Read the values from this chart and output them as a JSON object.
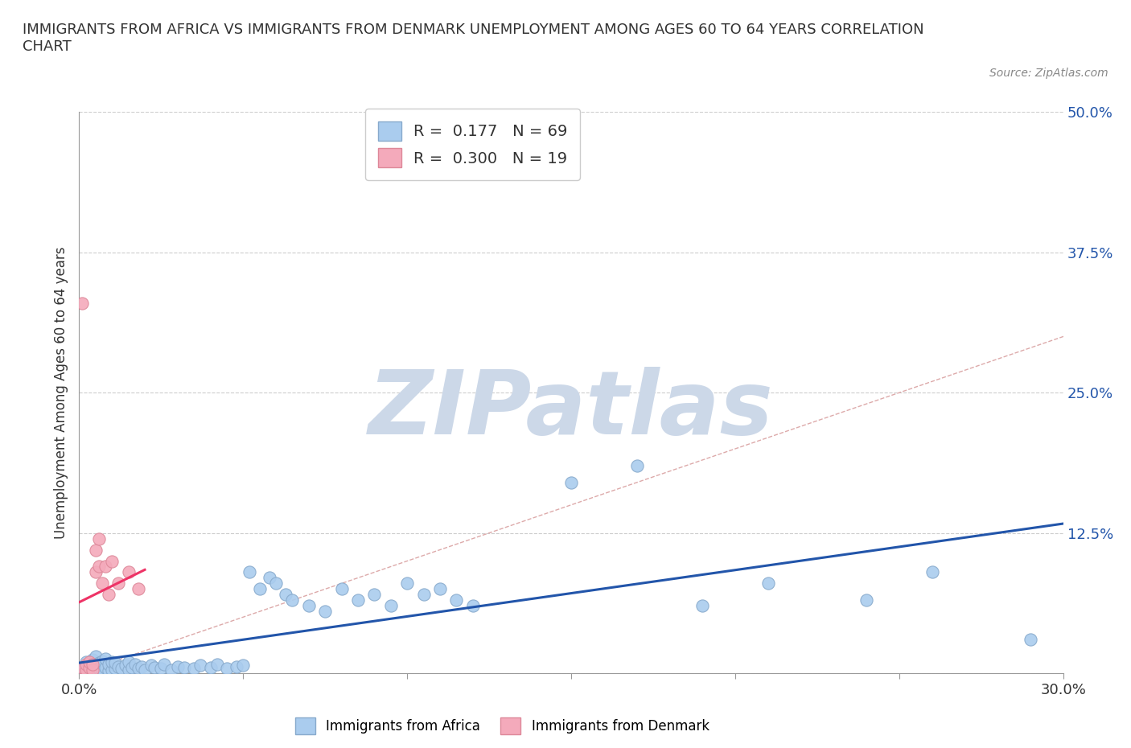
{
  "title": "IMMIGRANTS FROM AFRICA VS IMMIGRANTS FROM DENMARK UNEMPLOYMENT AMONG AGES 60 TO 64 YEARS CORRELATION\nCHART",
  "source_text": "Source: ZipAtlas.com",
  "ylabel": "Unemployment Among Ages 60 to 64 years",
  "xlim": [
    0.0,
    0.3
  ],
  "ylim": [
    0.0,
    0.5
  ],
  "xticks": [
    0.0,
    0.05,
    0.1,
    0.15,
    0.2,
    0.25,
    0.3
  ],
  "xticklabels": [
    "0.0%",
    "",
    "",
    "",
    "",
    "",
    "30.0%"
  ],
  "yticks": [
    0.0,
    0.125,
    0.25,
    0.375,
    0.5
  ],
  "yticklabels": [
    "",
    "12.5%",
    "25.0%",
    "37.5%",
    "50.0%"
  ],
  "africa_color": "#aaccee",
  "africa_edge_color": "#88aacc",
  "denmark_color": "#f4aabb",
  "denmark_edge_color": "#dd8899",
  "africa_line_color": "#2255aa",
  "denmark_line_color": "#ee3366",
  "watermark_color": "#ccd8e8",
  "diag_line_color": "#ddaaaa",
  "grid_color": "#cccccc",
  "background_color": "#ffffff",
  "africa_x": [
    0.001,
    0.002,
    0.003,
    0.003,
    0.004,
    0.004,
    0.005,
    0.005,
    0.005,
    0.006,
    0.006,
    0.007,
    0.007,
    0.008,
    0.008,
    0.009,
    0.009,
    0.01,
    0.01,
    0.011,
    0.011,
    0.012,
    0.013,
    0.014,
    0.015,
    0.015,
    0.016,
    0.017,
    0.018,
    0.019,
    0.02,
    0.022,
    0.023,
    0.025,
    0.026,
    0.028,
    0.03,
    0.032,
    0.035,
    0.037,
    0.04,
    0.042,
    0.045,
    0.048,
    0.05,
    0.052,
    0.055,
    0.058,
    0.06,
    0.063,
    0.065,
    0.07,
    0.075,
    0.08,
    0.085,
    0.09,
    0.095,
    0.1,
    0.105,
    0.11,
    0.115,
    0.12,
    0.15,
    0.17,
    0.19,
    0.21,
    0.24,
    0.26,
    0.29
  ],
  "africa_y": [
    0.005,
    0.01,
    0.003,
    0.008,
    0.004,
    0.012,
    0.002,
    0.006,
    0.015,
    0.004,
    0.009,
    0.003,
    0.011,
    0.005,
    0.013,
    0.002,
    0.008,
    0.003,
    0.01,
    0.004,
    0.009,
    0.006,
    0.004,
    0.007,
    0.003,
    0.01,
    0.005,
    0.008,
    0.004,
    0.006,
    0.003,
    0.007,
    0.005,
    0.004,
    0.008,
    0.003,
    0.006,
    0.005,
    0.004,
    0.007,
    0.005,
    0.008,
    0.004,
    0.006,
    0.007,
    0.09,
    0.075,
    0.085,
    0.08,
    0.07,
    0.065,
    0.06,
    0.055,
    0.075,
    0.065,
    0.07,
    0.06,
    0.08,
    0.07,
    0.075,
    0.065,
    0.06,
    0.17,
    0.185,
    0.06,
    0.08,
    0.065,
    0.09,
    0.03
  ],
  "denmark_x": [
    0.001,
    0.002,
    0.002,
    0.003,
    0.003,
    0.004,
    0.004,
    0.005,
    0.005,
    0.006,
    0.006,
    0.007,
    0.008,
    0.009,
    0.01,
    0.012,
    0.015,
    0.018,
    0.001
  ],
  "denmark_y": [
    0.005,
    0.003,
    0.008,
    0.005,
    0.01,
    0.003,
    0.008,
    0.09,
    0.11,
    0.095,
    0.12,
    0.08,
    0.095,
    0.07,
    0.1,
    0.08,
    0.09,
    0.075,
    0.33
  ]
}
